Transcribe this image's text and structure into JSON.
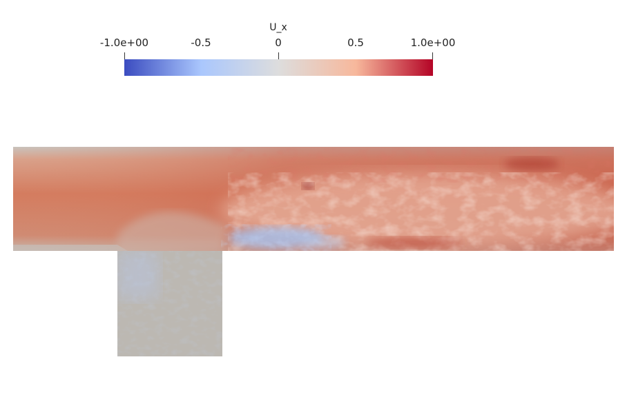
{
  "colorbar": {
    "title": "U_x",
    "ticks": [
      "-1.0e+00",
      "-0.5",
      "0",
      "0.5",
      "1.0e+00"
    ],
    "range": [
      -1.0,
      1.0
    ],
    "colors": [
      "#3b4cc0",
      "#aac7fd",
      "#dddddd",
      "#f7b89c",
      "#b40426"
    ]
  },
  "field": {
    "background": "#ffffff",
    "base_color": "#bcb8b2"
  }
}
